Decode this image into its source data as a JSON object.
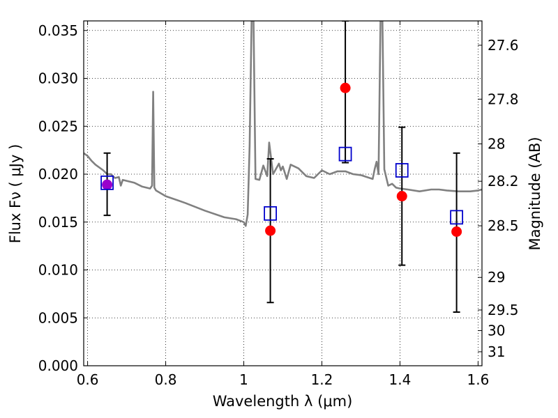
{
  "chart_data": {
    "type": "scatter",
    "title": "",
    "xlabel": "Wavelength  λ (μm)",
    "ylabel": "Flux  Fν  ( μJy )",
    "ylabel_right": "Magnitude (AB)",
    "xlim": [
      0.59,
      1.61
    ],
    "ylim": [
      0.0,
      0.036
    ],
    "grid": true,
    "x_ticks": [
      0.6,
      0.8,
      1.0,
      1.2,
      1.4,
      1.6
    ],
    "x_tick_labels": [
      "0.6",
      "0.8",
      "1",
      "1.2",
      "1.4",
      "1.6"
    ],
    "y_ticks": [
      0.0,
      0.005,
      0.01,
      0.015,
      0.02,
      0.025,
      0.03,
      0.035
    ],
    "y_tick_labels": [
      "0.000",
      "0.005",
      "0.010",
      "0.015",
      "0.020",
      "0.025",
      "0.030",
      "0.035"
    ],
    "right_ticks": [
      {
        "label": "27.6",
        "flux": 0.03346
      },
      {
        "label": "27.8",
        "flux": 0.02783
      },
      {
        "label": "28",
        "flux": 0.02316
      },
      {
        "label": "28.2",
        "flux": 0.01926
      },
      {
        "label": "28.5",
        "flux": 0.01461
      },
      {
        "label": "29",
        "flux": 0.00922
      },
      {
        "label": "29.5",
        "flux": 0.00582
      },
      {
        "label": "30",
        "flux": 0.00367
      },
      {
        "label": "31",
        "flux": 0.00146
      }
    ],
    "colors": {
      "model": "#808080",
      "observed": "#ff0000",
      "model_points": "#0000cc",
      "overlap": "#9900cc",
      "errorbar": "#000000"
    },
    "series": [
      {
        "name": "",
        "kind": "line",
        "x": [
          0.59,
          0.6,
          0.61,
          0.62,
          0.64,
          0.65,
          0.66,
          0.67,
          0.68,
          0.685,
          0.69,
          0.7,
          0.72,
          0.74,
          0.76,
          0.765,
          0.768,
          0.771,
          0.775,
          0.8,
          0.85,
          0.9,
          0.95,
          0.98,
          1.0,
          1.005,
          1.01,
          1.015,
          1.02,
          1.025,
          1.03,
          1.04,
          1.05,
          1.06,
          1.065,
          1.075,
          1.09,
          1.095,
          1.1,
          1.11,
          1.12,
          1.14,
          1.16,
          1.18,
          1.2,
          1.22,
          1.24,
          1.26,
          1.28,
          1.3,
          1.33,
          1.335,
          1.34,
          1.345,
          1.35,
          1.355,
          1.36,
          1.37,
          1.38,
          1.39,
          1.4,
          1.42,
          1.45,
          1.48,
          1.5,
          1.52,
          1.55,
          1.58,
          1.6,
          1.61
        ],
        "y": [
          0.0222,
          0.0219,
          0.0214,
          0.021,
          0.0204,
          0.02,
          0.02,
          0.0196,
          0.0197,
          0.0188,
          0.0194,
          0.0193,
          0.0191,
          0.0187,
          0.0185,
          0.0188,
          0.0286,
          0.0186,
          0.0183,
          0.0177,
          0.017,
          0.0162,
          0.0155,
          0.0153,
          0.015,
          0.0146,
          0.0158,
          0.023,
          0.036,
          0.036,
          0.0195,
          0.0194,
          0.0209,
          0.0198,
          0.0233,
          0.02,
          0.0211,
          0.0204,
          0.0208,
          0.0195,
          0.021,
          0.0206,
          0.0198,
          0.0196,
          0.0204,
          0.02,
          0.0203,
          0.0203,
          0.02,
          0.0199,
          0.0195,
          0.0205,
          0.0213,
          0.02,
          0.036,
          0.036,
          0.0205,
          0.0188,
          0.019,
          0.0186,
          0.0185,
          0.0184,
          0.0182,
          0.0184,
          0.0184,
          0.0183,
          0.0182,
          0.0182,
          0.0183,
          0.0184
        ]
      },
      {
        "name": "",
        "kind": "errorbar-points",
        "x": [
          0.65,
          1.068,
          1.26,
          1.405,
          1.545
        ],
        "y": [
          0.0189,
          0.0141,
          0.029,
          0.0177,
          0.014
        ],
        "yerr_low": [
          0.0157,
          0.0066,
          0.0212,
          0.0105,
          0.0056
        ],
        "yerr_high": [
          0.0222,
          0.0216,
          0.036,
          0.0249,
          0.0222
        ]
      },
      {
        "name": "",
        "kind": "square-points",
        "x": [
          0.65,
          1.068,
          1.26,
          1.405,
          1.545
        ],
        "y": [
          0.0191,
          0.0159,
          0.0221,
          0.0204,
          0.0155
        ]
      }
    ]
  }
}
